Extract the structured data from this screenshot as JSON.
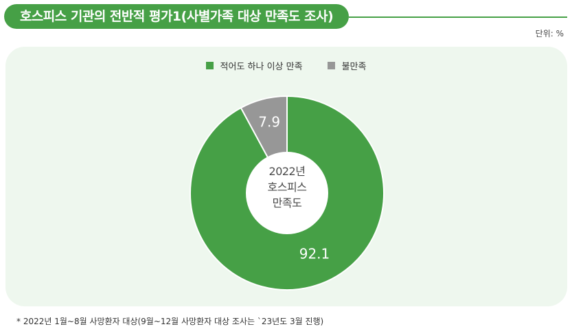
{
  "header": {
    "title": "호스피스 기관의 전반적 평가1(사별가족 대상 만족도 조사)",
    "unit": "단위: %"
  },
  "colors": {
    "accent": "#46a046",
    "satisfied": "#46a046",
    "dissatisfied": "#979797",
    "panel_bg": "#eef7ee"
  },
  "chart_data": {
    "type": "pie",
    "variant": "donut",
    "legend": "top-center",
    "slices": [
      {
        "label": "적어도 하나 이상 만족",
        "value": 92.1,
        "value_label": "92.1"
      },
      {
        "label": "불만족",
        "value": 7.9,
        "value_label": "7.9"
      }
    ],
    "center_text": [
      "2022년",
      "호스피스",
      "만족도"
    ]
  },
  "footnote": "* 2022년 1월~8월 사망환자 대상(9월~12월 사망환자 대상 조사는 `23년도 3월 진행)"
}
